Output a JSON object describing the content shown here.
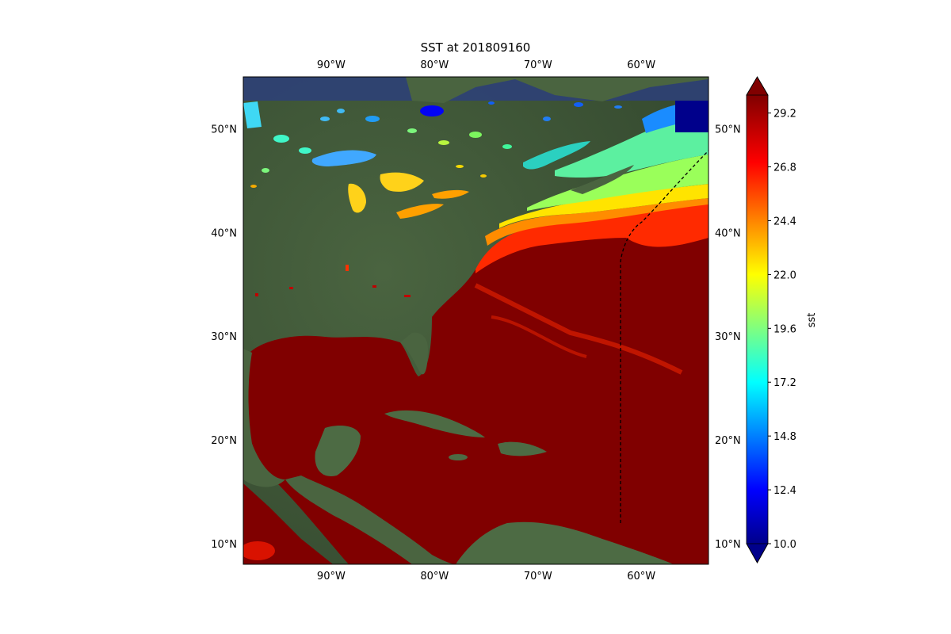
{
  "title": "SST at 201809160",
  "map": {
    "lon_range": [
      -98.5,
      -53.5
    ],
    "lat_range": [
      8.0,
      55.0
    ],
    "lon_ticks": [
      "90°W",
      "80°W",
      "70°W",
      "60°W"
    ],
    "lat_ticks": [
      "10°N",
      "20°N",
      "30°N",
      "40°N",
      "50°N"
    ],
    "track_line": "dashed black"
  },
  "colorbar": {
    "label": "sst",
    "colormap": "jet",
    "min": 10.0,
    "max": 30.0,
    "extend": "both",
    "ticks": [
      "10.0",
      "12.4",
      "14.8",
      "17.2",
      "19.6",
      "22.0",
      "24.4",
      "26.8",
      "29.2"
    ],
    "colors": {
      "dark_blue": "#00008b",
      "blue": "#0000ff",
      "cyan": "#00ffff",
      "yellow": "#ffff00",
      "red": "#ff0000",
      "dark_red": "#800000"
    }
  },
  "colors": {
    "land": "#3f5a3a",
    "ocean_hot": "#800000",
    "ocean_edge": "#2d3f7a"
  }
}
